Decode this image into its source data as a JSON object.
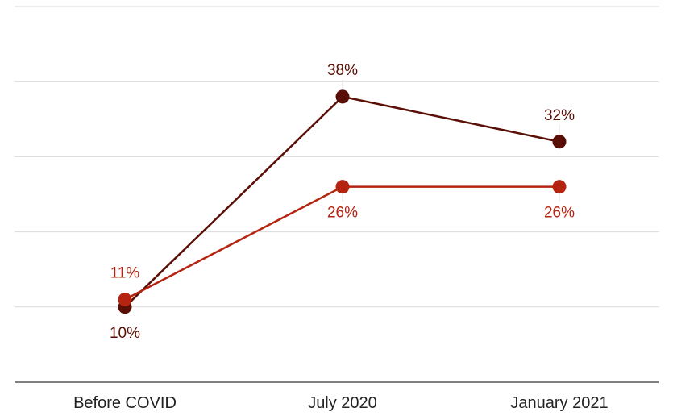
{
  "chart_data": {
    "type": "line",
    "categories": [
      "Before COVID",
      "July 2020",
      "January 2021"
    ],
    "series": [
      {
        "values": [
          10,
          38,
          32
        ],
        "labels": [
          "10%",
          "38%",
          "32%"
        ],
        "color": "#5a0f06"
      },
      {
        "values": [
          11,
          26,
          26
        ],
        "labels": [
          "11%",
          "26%",
          "26%"
        ],
        "color": "#b52410"
      }
    ],
    "ylim": [
      0,
      50
    ],
    "grid": true,
    "title": "",
    "xlabel": "",
    "ylabel": ""
  }
}
